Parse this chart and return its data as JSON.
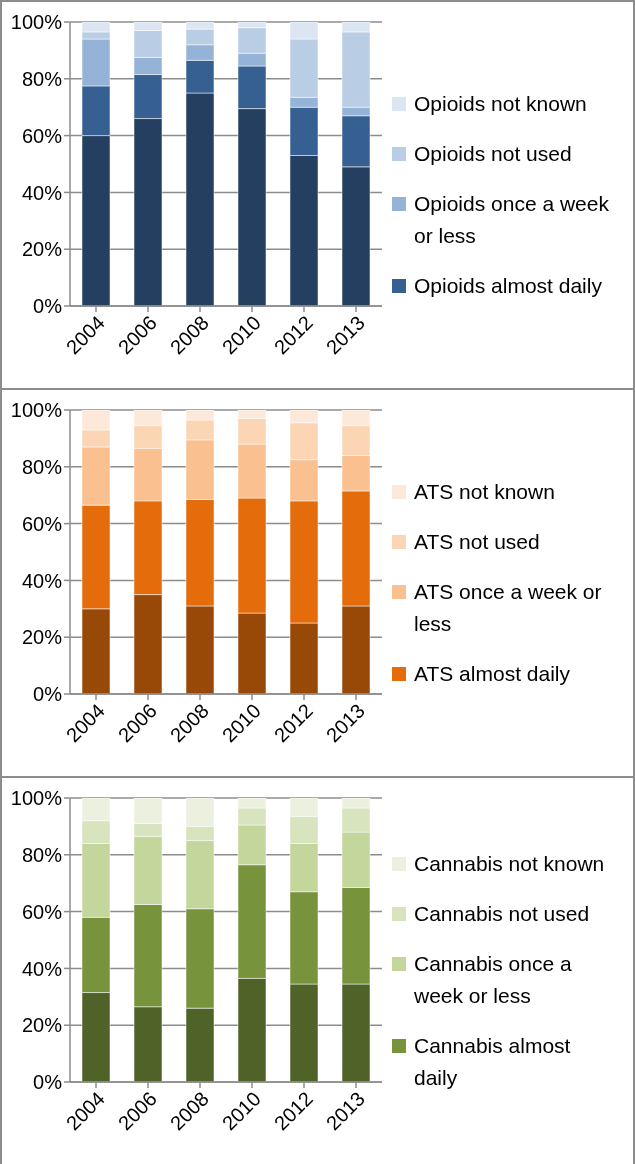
{
  "chart_data": [
    {
      "type": "bar",
      "stacked": true,
      "categories": [
        "2004",
        "2006",
        "2008",
        "2010",
        "2012",
        "2013"
      ],
      "ylim": [
        0,
        100
      ],
      "yticks": [
        {
          "value": 0,
          "label": "0%"
        },
        {
          "value": 20,
          "label": "20%"
        },
        {
          "value": 40,
          "label": "40%"
        },
        {
          "value": 60,
          "label": "60%"
        },
        {
          "value": 80,
          "label": "80%"
        },
        {
          "value": 100,
          "label": "100%"
        }
      ],
      "grid": "y",
      "legend": "right",
      "series": [
        {
          "color": "#243f60",
          "values": [
            60,
            66,
            75,
            69.5,
            53,
            49
          ]
        },
        {
          "name": "Opioids almost daily",
          "color": "#376092",
          "values": [
            17.5,
            15.5,
            11.5,
            15,
            17,
            18
          ]
        },
        {
          "name": "Opioids once a week or less",
          "color": "#95b3d7",
          "values": [
            16.5,
            6,
            5.5,
            4.5,
            3.5,
            3
          ]
        },
        {
          "name": "Opioids not used",
          "color": "#b9cde5",
          "values": [
            2.5,
            9.5,
            5.5,
            9,
            20.5,
            26.5
          ]
        },
        {
          "name": "Opioids not known",
          "color": "#dce6f2",
          "values": [
            3.5,
            3,
            2.5,
            2,
            6,
            3.5
          ]
        }
      ]
    },
    {
      "type": "bar",
      "stacked": true,
      "categories": [
        "2004",
        "2006",
        "2008",
        "2010",
        "2012",
        "2013"
      ],
      "ylim": [
        0,
        100
      ],
      "yticks": [
        {
          "value": 0,
          "label": "0%"
        },
        {
          "value": 20,
          "label": "20%"
        },
        {
          "value": 40,
          "label": "40%"
        },
        {
          "value": 60,
          "label": "60%"
        },
        {
          "value": 80,
          "label": "80%"
        },
        {
          "value": 100,
          "label": "100%"
        }
      ],
      "grid": "y",
      "legend": "right",
      "series": [
        {
          "color": "#984807",
          "values": [
            30,
            35,
            31,
            28.5,
            25,
            31
          ]
        },
        {
          "name": "ATS almost daily",
          "color": "#e46c0a",
          "values": [
            36.5,
            33,
            37.5,
            40.5,
            43,
            40.5
          ]
        },
        {
          "name": "ATS once a week or less",
          "color": "#fac090",
          "values": [
            20.5,
            18.5,
            21,
            19,
            14.5,
            12.5
          ]
        },
        {
          "name": "ATS not used",
          "color": "#fcd5b5",
          "values": [
            6,
            8,
            7,
            9,
            13,
            10.5
          ]
        },
        {
          "name": "ATS not known",
          "color": "#fde9d9",
          "values": [
            7,
            5.5,
            3.5,
            3,
            4.5,
            5.5
          ]
        }
      ]
    },
    {
      "type": "bar",
      "stacked": true,
      "categories": [
        "2004",
        "2006",
        "2008",
        "2010",
        "2012",
        "2013"
      ],
      "ylim": [
        0,
        100
      ],
      "yticks": [
        {
          "value": 0,
          "label": "0%"
        },
        {
          "value": 20,
          "label": "20%"
        },
        {
          "value": 40,
          "label": "40%"
        },
        {
          "value": 60,
          "label": "60%"
        },
        {
          "value": 80,
          "label": "80%"
        },
        {
          "value": 100,
          "label": "100%"
        }
      ],
      "grid": "y",
      "legend": "right",
      "series": [
        {
          "color": "#4f6228",
          "values": [
            31.5,
            26.5,
            26,
            36.5,
            34.5,
            34.5
          ]
        },
        {
          "name": "Cannabis almost daily",
          "color": "#77933c",
          "values": [
            26.5,
            36,
            35,
            40,
            32.5,
            34
          ]
        },
        {
          "name": "Cannabis once a week or less",
          "color": "#c3d69b",
          "values": [
            26,
            24,
            24,
            14,
            17,
            19.5
          ]
        },
        {
          "name": "Cannabis not used",
          "color": "#d7e4bd",
          "values": [
            8,
            4.5,
            5,
            6,
            9.5,
            8.5
          ]
        },
        {
          "name": "Cannabis not known",
          "color": "#ebf1de",
          "values": [
            8,
            9,
            10,
            3.5,
            6.5,
            3.5
          ]
        }
      ]
    }
  ]
}
